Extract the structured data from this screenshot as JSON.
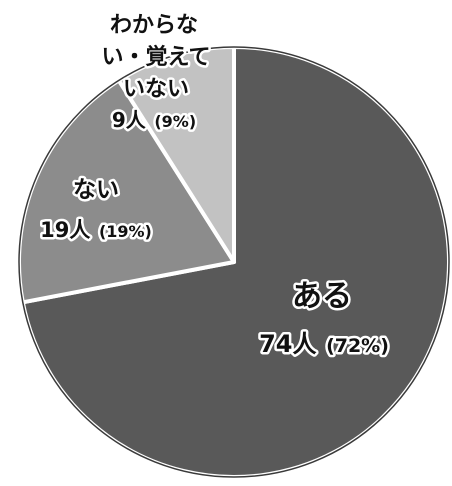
{
  "chart_data": {
    "type": "pie",
    "title": "",
    "slices": [
      {
        "label": "ある",
        "count": "74人",
        "percent": "(72%)",
        "value": 72,
        "color": "#595959"
      },
      {
        "label": "ない",
        "count": "19人",
        "percent": "(19%)",
        "value": 19,
        "color": "#8c8c8c"
      },
      {
        "label": "わからない・覚えていない",
        "label_lines": [
          "わからな",
          "い・覚えて",
          "いない"
        ],
        "count": "9人",
        "percent": "(9%)",
        "value": 9,
        "color": "#c2c2c2"
      }
    ],
    "start": "12 o'clock",
    "direction": "clockwise",
    "legend": "none"
  }
}
